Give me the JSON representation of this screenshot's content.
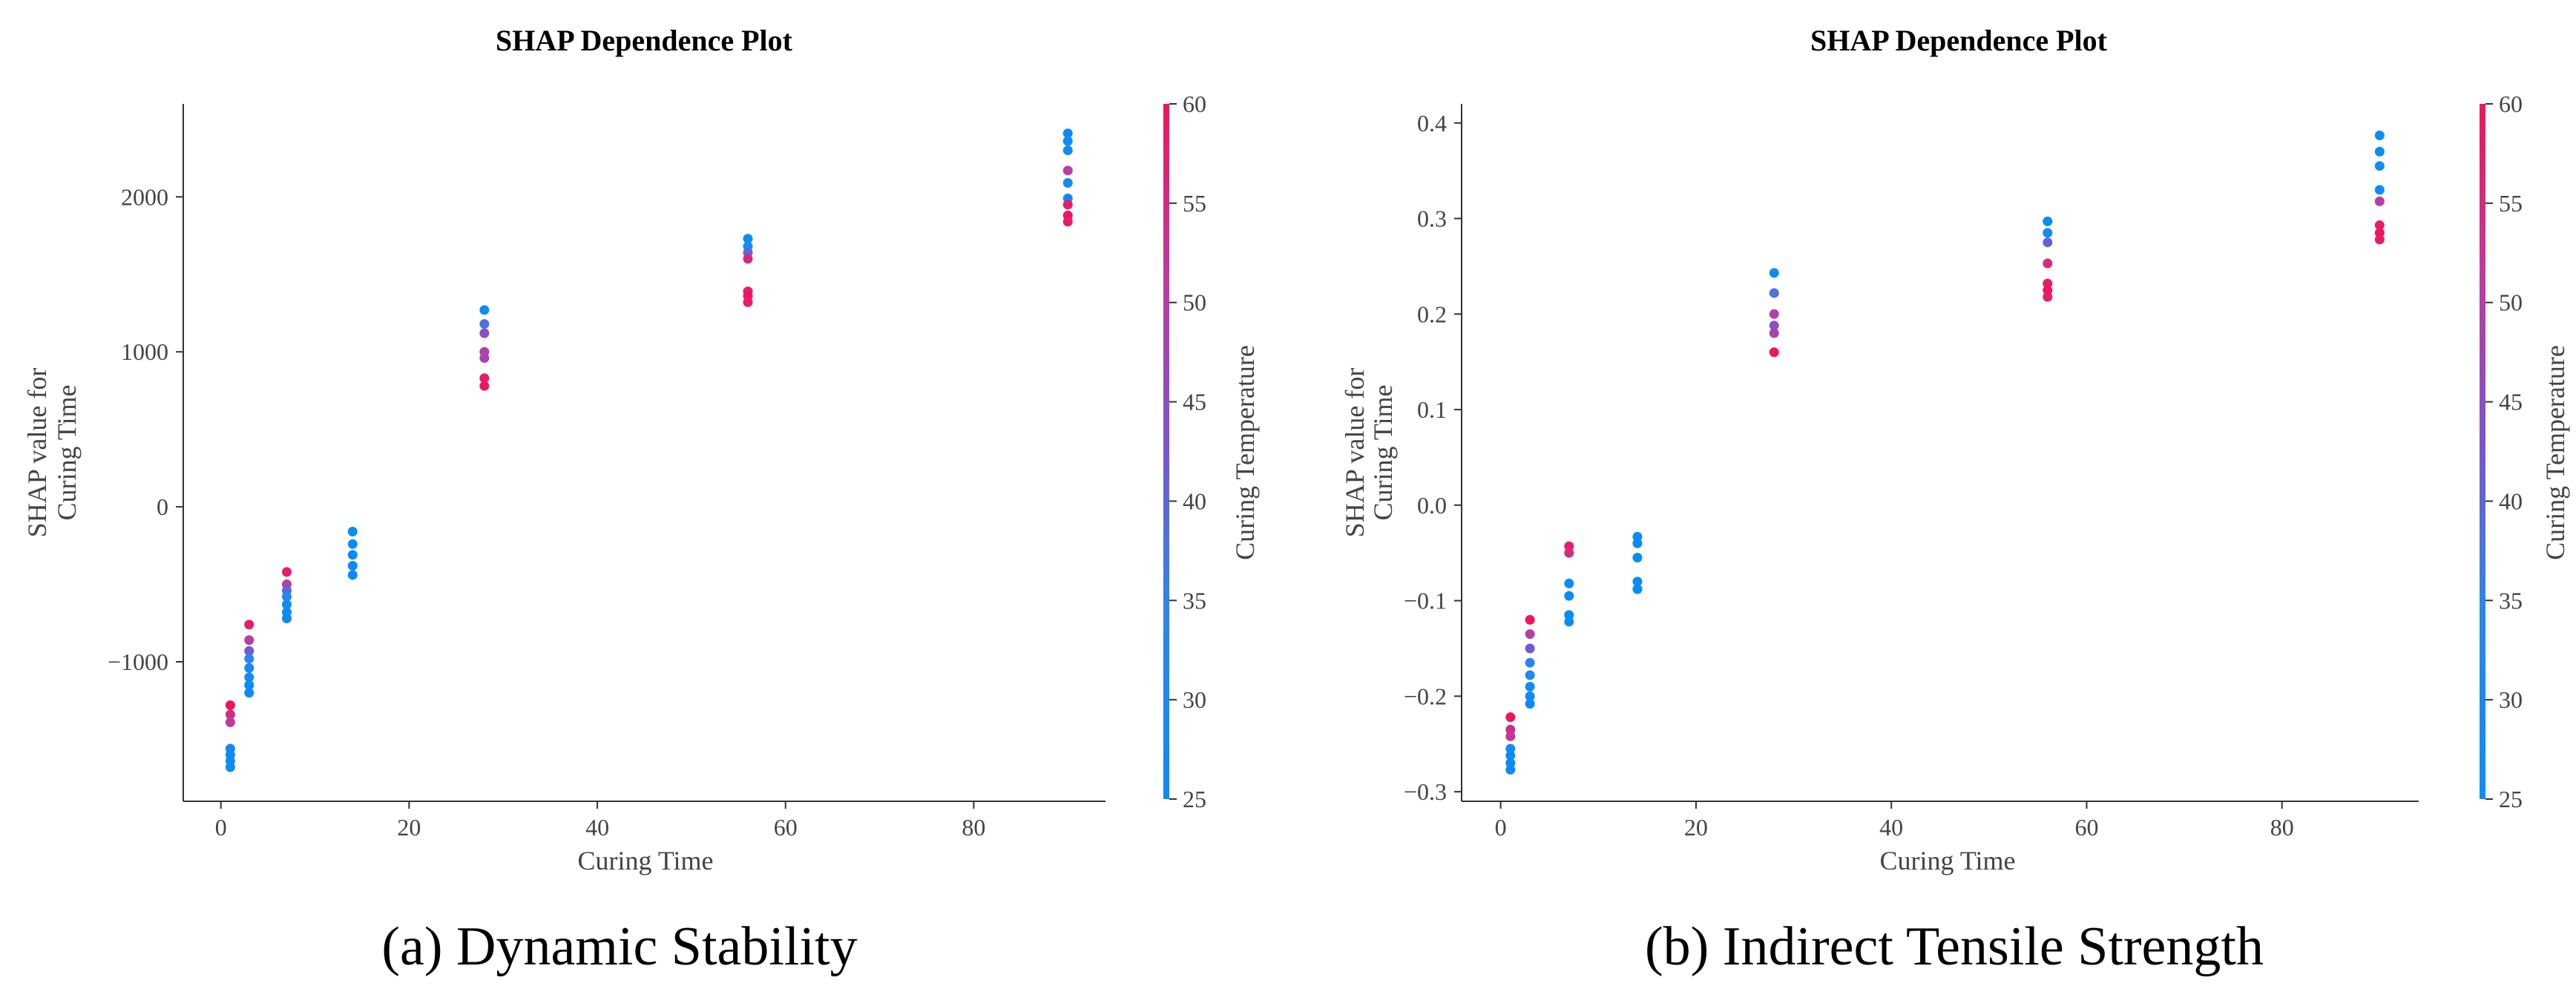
{
  "chart_data": [
    {
      "type": "scatter",
      "title": "SHAP Dependence Plot",
      "caption": "(a) Dynamic Stability",
      "xlabel": "Curing Time",
      "ylabel_lines": [
        "SHAP value for",
        "Curing Time"
      ],
      "xlim": [
        -4,
        94
      ],
      "ylim": [
        -1900,
        2600
      ],
      "xticks": [
        0,
        20,
        40,
        60,
        80
      ],
      "yticks": [
        -1000,
        0,
        1000,
        2000
      ],
      "ytick_labels": [
        "−1000",
        "0",
        "1000",
        "2000"
      ],
      "colorbar": {
        "label": "Curing Temperature",
        "range": [
          25,
          60
        ],
        "ticks": [
          25,
          30,
          35,
          40,
          45,
          50,
          55,
          60
        ]
      },
      "points": [
        {
          "x": 1,
          "y": -1280,
          "t": 60
        },
        {
          "x": 1,
          "y": -1340,
          "t": 55
        },
        {
          "x": 1,
          "y": -1390,
          "t": 52
        },
        {
          "x": 1,
          "y": -1560,
          "t": 28
        },
        {
          "x": 1,
          "y": -1600,
          "t": 26
        },
        {
          "x": 1,
          "y": -1640,
          "t": 25
        },
        {
          "x": 1,
          "y": -1680,
          "t": 25
        },
        {
          "x": 3,
          "y": -760,
          "t": 58
        },
        {
          "x": 3,
          "y": -860,
          "t": 50
        },
        {
          "x": 3,
          "y": -930,
          "t": 42
        },
        {
          "x": 3,
          "y": -980,
          "t": 35
        },
        {
          "x": 3,
          "y": -1040,
          "t": 30
        },
        {
          "x": 3,
          "y": -1100,
          "t": 27
        },
        {
          "x": 3,
          "y": -1150,
          "t": 26
        },
        {
          "x": 3,
          "y": -1200,
          "t": 25
        },
        {
          "x": 7,
          "y": -420,
          "t": 58
        },
        {
          "x": 7,
          "y": -500,
          "t": 50
        },
        {
          "x": 7,
          "y": -540,
          "t": 40
        },
        {
          "x": 7,
          "y": -580,
          "t": 32
        },
        {
          "x": 7,
          "y": -630,
          "t": 28
        },
        {
          "x": 7,
          "y": -680,
          "t": 26
        },
        {
          "x": 7,
          "y": -720,
          "t": 25
        },
        {
          "x": 14,
          "y": -160,
          "t": 25
        },
        {
          "x": 14,
          "y": -240,
          "t": 25
        },
        {
          "x": 14,
          "y": -310,
          "t": 25
        },
        {
          "x": 14,
          "y": -380,
          "t": 25
        },
        {
          "x": 14,
          "y": -440,
          "t": 25
        },
        {
          "x": 28,
          "y": 1270,
          "t": 25
        },
        {
          "x": 28,
          "y": 1180,
          "t": 38
        },
        {
          "x": 28,
          "y": 1120,
          "t": 45
        },
        {
          "x": 28,
          "y": 1000,
          "t": 50
        },
        {
          "x": 28,
          "y": 960,
          "t": 48
        },
        {
          "x": 28,
          "y": 830,
          "t": 58
        },
        {
          "x": 28,
          "y": 780,
          "t": 60
        },
        {
          "x": 56,
          "y": 1730,
          "t": 25
        },
        {
          "x": 56,
          "y": 1680,
          "t": 28
        },
        {
          "x": 56,
          "y": 1640,
          "t": 40
        },
        {
          "x": 56,
          "y": 1600,
          "t": 55
        },
        {
          "x": 56,
          "y": 1390,
          "t": 58
        },
        {
          "x": 56,
          "y": 1360,
          "t": 60
        },
        {
          "x": 56,
          "y": 1320,
          "t": 58
        },
        {
          "x": 90,
          "y": 2410,
          "t": 25
        },
        {
          "x": 90,
          "y": 2360,
          "t": 26
        },
        {
          "x": 90,
          "y": 2300,
          "t": 27
        },
        {
          "x": 90,
          "y": 2170,
          "t": 50
        },
        {
          "x": 90,
          "y": 2090,
          "t": 28
        },
        {
          "x": 90,
          "y": 1990,
          "t": 26
        },
        {
          "x": 90,
          "y": 1950,
          "t": 58
        },
        {
          "x": 90,
          "y": 1880,
          "t": 60
        },
        {
          "x": 90,
          "y": 1840,
          "t": 58
        }
      ]
    },
    {
      "type": "scatter",
      "title": "SHAP Dependence Plot",
      "caption": "(b) Indirect Tensile Strength",
      "xlabel": "Curing Time",
      "ylabel_lines": [
        "SHAP value for",
        "Curing Time"
      ],
      "xlim": [
        -4,
        94
      ],
      "ylim": [
        -0.31,
        0.42
      ],
      "xticks": [
        0,
        20,
        40,
        60,
        80
      ],
      "yticks": [
        -0.3,
        -0.2,
        -0.1,
        0.0,
        0.1,
        0.2,
        0.3,
        0.4
      ],
      "ytick_labels": [
        "−0.3",
        "−0.2",
        "−0.1",
        "0.0",
        "0.1",
        "0.2",
        "0.3",
        "0.4"
      ],
      "colorbar": {
        "label": "Curing Temperature",
        "range": [
          25,
          60
        ],
        "ticks": [
          25,
          30,
          35,
          40,
          45,
          50,
          55,
          60
        ]
      },
      "points": [
        {
          "x": 1,
          "y": -0.222,
          "t": 60
        },
        {
          "x": 1,
          "y": -0.235,
          "t": 55
        },
        {
          "x": 1,
          "y": -0.242,
          "t": 52
        },
        {
          "x": 1,
          "y": -0.255,
          "t": 28
        },
        {
          "x": 1,
          "y": -0.262,
          "t": 26
        },
        {
          "x": 1,
          "y": -0.27,
          "t": 25
        },
        {
          "x": 1,
          "y": -0.277,
          "t": 25
        },
        {
          "x": 3,
          "y": -0.12,
          "t": 60
        },
        {
          "x": 3,
          "y": -0.135,
          "t": 50
        },
        {
          "x": 3,
          "y": -0.15,
          "t": 42
        },
        {
          "x": 3,
          "y": -0.165,
          "t": 35
        },
        {
          "x": 3,
          "y": -0.178,
          "t": 30
        },
        {
          "x": 3,
          "y": -0.19,
          "t": 28
        },
        {
          "x": 3,
          "y": -0.2,
          "t": 26
        },
        {
          "x": 3,
          "y": -0.208,
          "t": 25
        },
        {
          "x": 7,
          "y": -0.043,
          "t": 58
        },
        {
          "x": 7,
          "y": -0.05,
          "t": 55
        },
        {
          "x": 7,
          "y": -0.082,
          "t": 26
        },
        {
          "x": 7,
          "y": -0.095,
          "t": 25
        },
        {
          "x": 7,
          "y": -0.115,
          "t": 25
        },
        {
          "x": 7,
          "y": -0.122,
          "t": 25
        },
        {
          "x": 14,
          "y": -0.033,
          "t": 25
        },
        {
          "x": 14,
          "y": -0.04,
          "t": 25
        },
        {
          "x": 14,
          "y": -0.055,
          "t": 25
        },
        {
          "x": 14,
          "y": -0.08,
          "t": 25
        },
        {
          "x": 14,
          "y": -0.088,
          "t": 25
        },
        {
          "x": 28,
          "y": 0.243,
          "t": 25
        },
        {
          "x": 28,
          "y": 0.222,
          "t": 38
        },
        {
          "x": 28,
          "y": 0.2,
          "t": 50
        },
        {
          "x": 28,
          "y": 0.188,
          "t": 45
        },
        {
          "x": 28,
          "y": 0.18,
          "t": 48
        },
        {
          "x": 28,
          "y": 0.16,
          "t": 60
        },
        {
          "x": 56,
          "y": 0.297,
          "t": 25
        },
        {
          "x": 56,
          "y": 0.285,
          "t": 28
        },
        {
          "x": 56,
          "y": 0.275,
          "t": 40
        },
        {
          "x": 56,
          "y": 0.253,
          "t": 55
        },
        {
          "x": 56,
          "y": 0.232,
          "t": 58
        },
        {
          "x": 56,
          "y": 0.225,
          "t": 60
        },
        {
          "x": 56,
          "y": 0.218,
          "t": 58
        },
        {
          "x": 90,
          "y": 0.387,
          "t": 25
        },
        {
          "x": 90,
          "y": 0.37,
          "t": 26
        },
        {
          "x": 90,
          "y": 0.355,
          "t": 27
        },
        {
          "x": 90,
          "y": 0.33,
          "t": 26
        },
        {
          "x": 90,
          "y": 0.318,
          "t": 50
        },
        {
          "x": 90,
          "y": 0.293,
          "t": 58
        },
        {
          "x": 90,
          "y": 0.285,
          "t": 60
        },
        {
          "x": 90,
          "y": 0.278,
          "t": 58
        }
      ]
    }
  ]
}
